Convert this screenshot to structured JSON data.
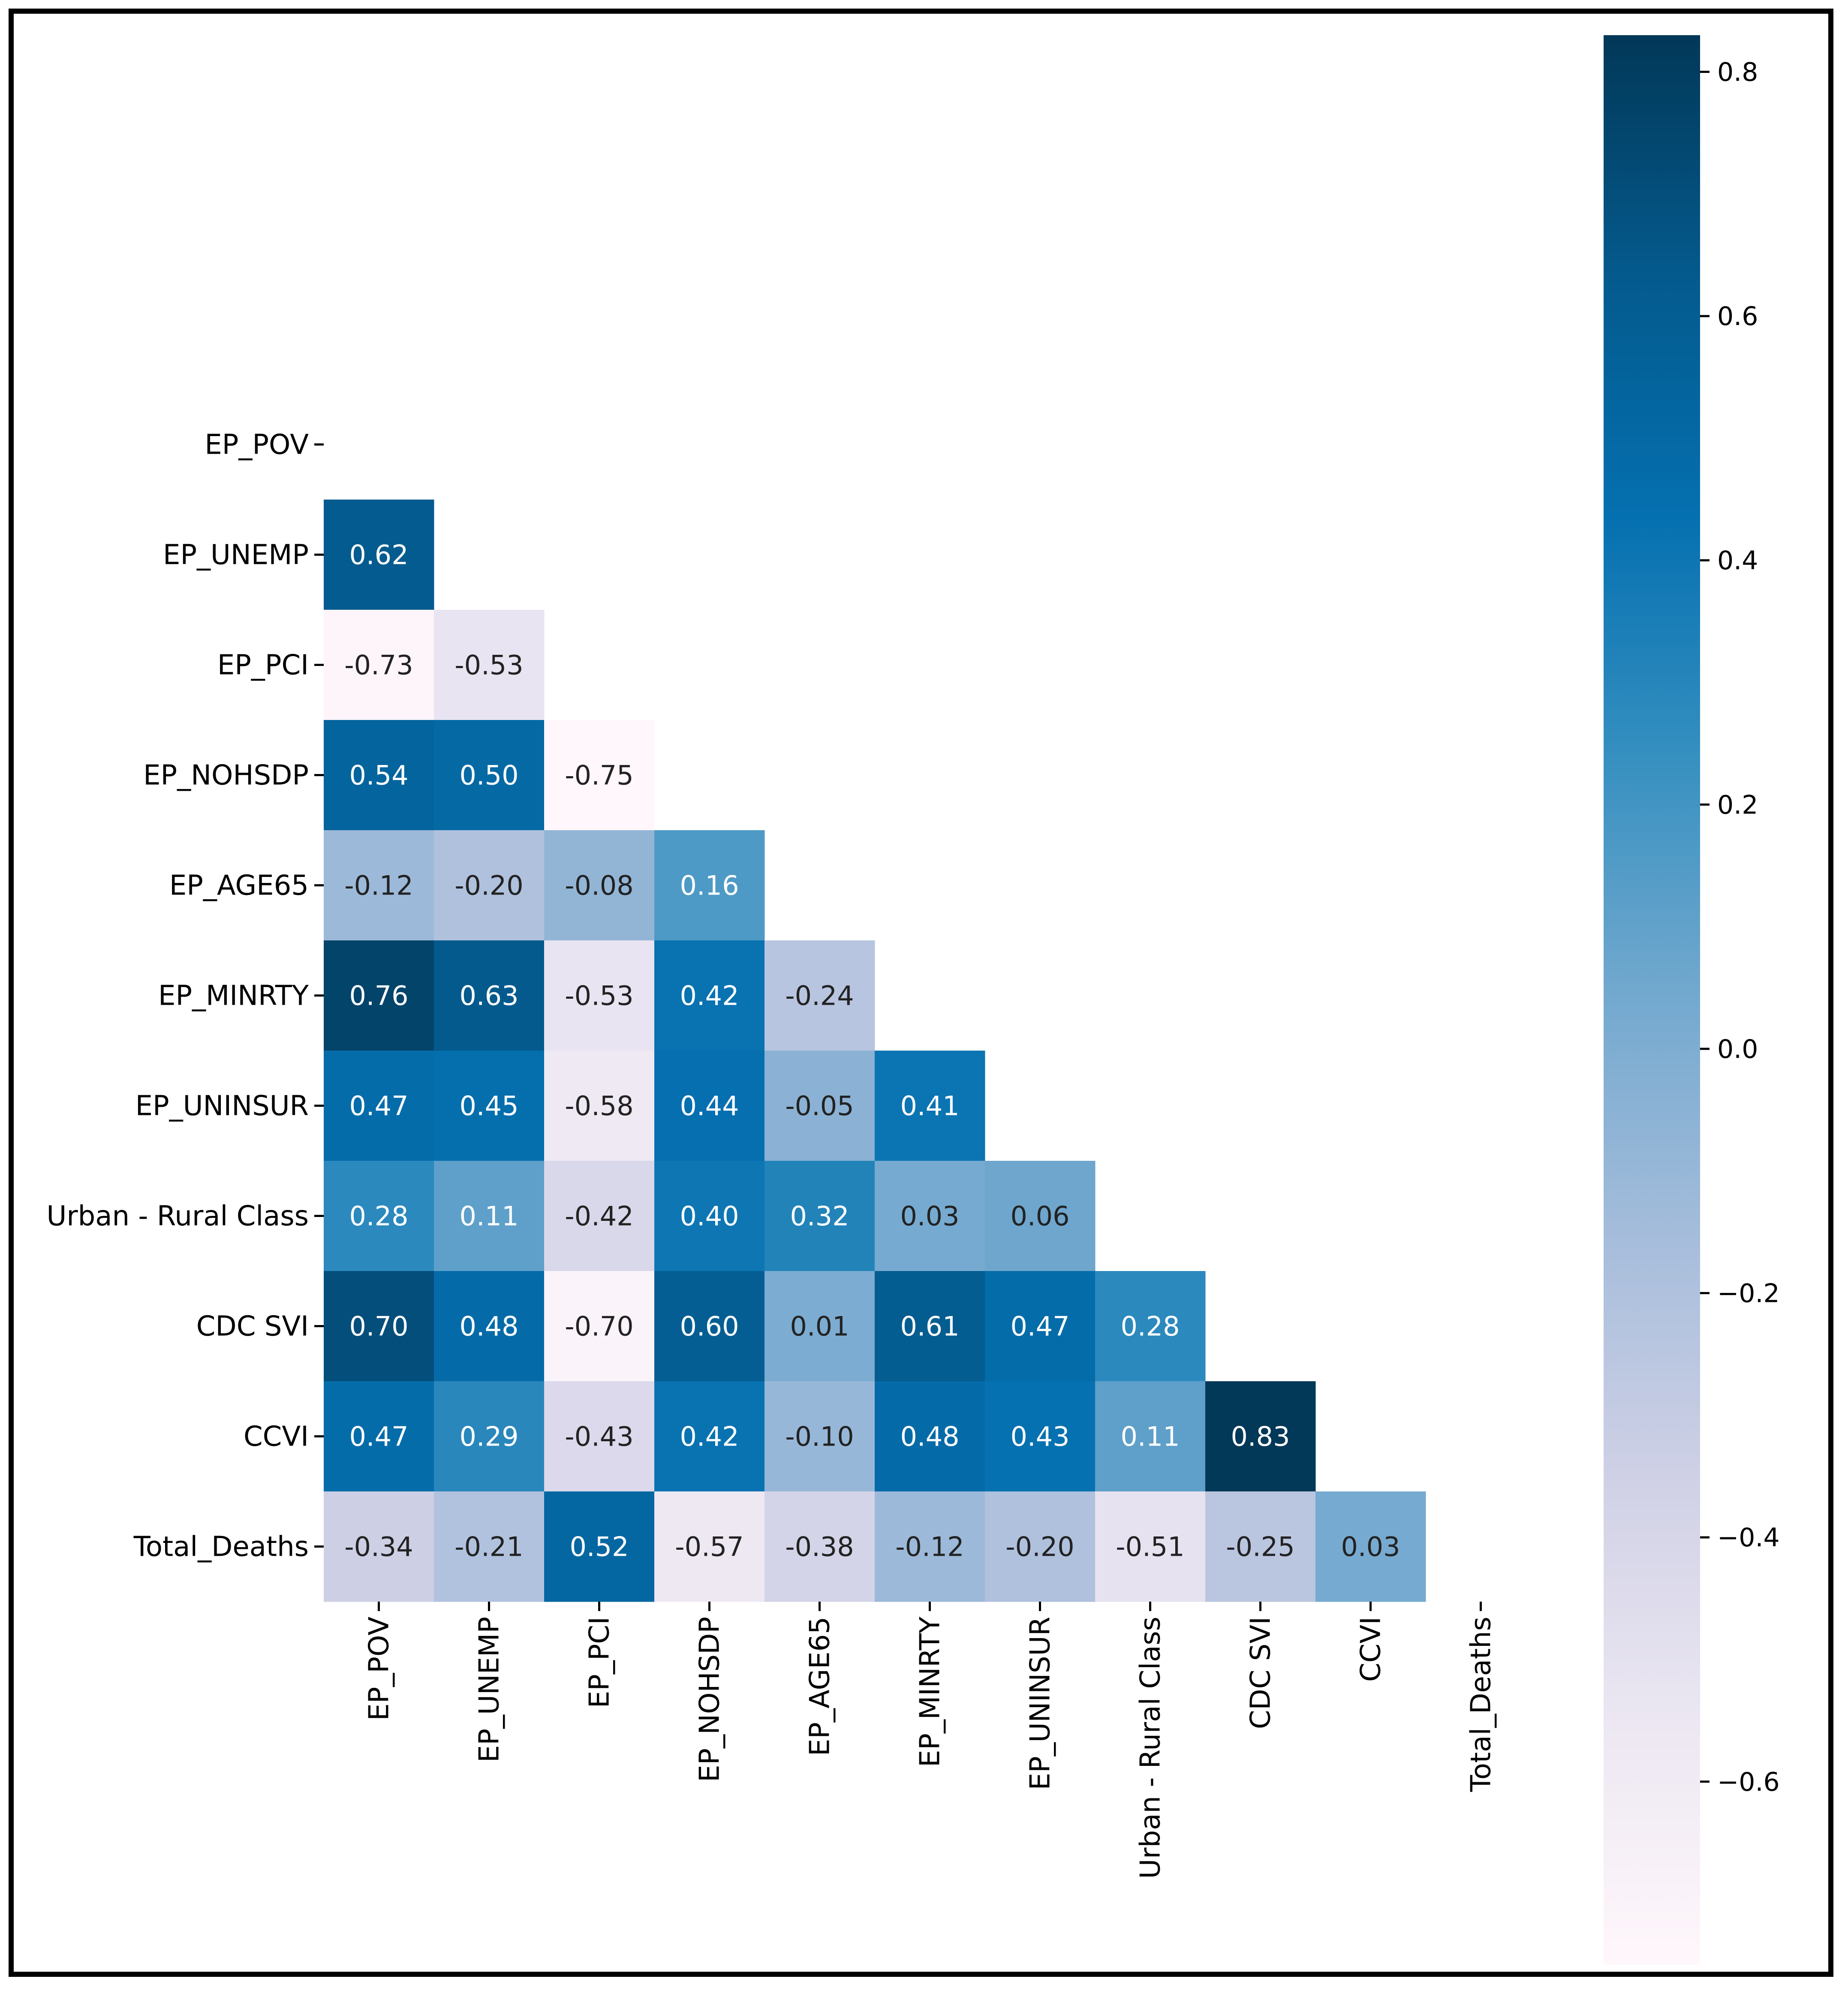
{
  "chart_data": {
    "type": "heatmap",
    "title": "",
    "labels": [
      "EP_POV",
      "EP_UNEMP",
      "EP_PCI",
      "EP_NOHSDP",
      "EP_AGE65",
      "EP_MINRTY",
      "EP_UNINSUR",
      "Urban - Rural Class",
      "CDC SVI",
      "CCVI",
      "Total_Deaths"
    ],
    "matrix": [
      [
        null,
        null,
        null,
        null,
        null,
        null,
        null,
        null,
        null,
        null,
        null
      ],
      [
        0.62,
        null,
        null,
        null,
        null,
        null,
        null,
        null,
        null,
        null,
        null
      ],
      [
        -0.73,
        -0.53,
        null,
        null,
        null,
        null,
        null,
        null,
        null,
        null,
        null
      ],
      [
        0.54,
        0.5,
        -0.75,
        null,
        null,
        null,
        null,
        null,
        null,
        null,
        null
      ],
      [
        -0.12,
        -0.2,
        -0.08,
        0.16,
        null,
        null,
        null,
        null,
        null,
        null,
        null
      ],
      [
        0.76,
        0.63,
        -0.53,
        0.42,
        -0.24,
        null,
        null,
        null,
        null,
        null,
        null
      ],
      [
        0.47,
        0.45,
        -0.58,
        0.44,
        -0.05,
        0.41,
        null,
        null,
        null,
        null,
        null
      ],
      [
        0.28,
        0.11,
        -0.42,
        0.4,
        0.32,
        0.03,
        0.06,
        null,
        null,
        null,
        null
      ],
      [
        0.7,
        0.48,
        -0.7,
        0.6,
        0.01,
        0.61,
        0.47,
        0.28,
        null,
        null,
        null
      ],
      [
        0.47,
        0.29,
        -0.43,
        0.42,
        -0.1,
        0.48,
        0.43,
        0.11,
        0.83,
        null,
        null
      ],
      [
        -0.34,
        -0.21,
        0.52,
        -0.57,
        -0.38,
        -0.12,
        -0.2,
        -0.51,
        -0.25,
        0.03,
        null
      ]
    ],
    "cell_labels": [
      [
        null,
        null,
        null,
        null,
        null,
        null,
        null,
        null,
        null,
        null,
        null
      ],
      [
        "0.62",
        null,
        null,
        null,
        null,
        null,
        null,
        null,
        null,
        null,
        null
      ],
      [
        "-0.73",
        "-0.53",
        null,
        null,
        null,
        null,
        null,
        null,
        null,
        null,
        null
      ],
      [
        "0.54",
        "0.50",
        "-0.75",
        null,
        null,
        null,
        null,
        null,
        null,
        null,
        null
      ],
      [
        "-0.12",
        "-0.20",
        "-0.08",
        "0.16",
        null,
        null,
        null,
        null,
        null,
        null,
        null
      ],
      [
        "0.76",
        "0.63",
        "-0.53",
        "0.42",
        "-0.24",
        null,
        null,
        null,
        null,
        null,
        null
      ],
      [
        "0.47",
        "0.45",
        "-0.58",
        "0.44",
        "-0.05",
        "0.41",
        null,
        null,
        null,
        null,
        null
      ],
      [
        "0.28",
        "0.11",
        "-0.42",
        "0.40",
        "0.32",
        "0.03",
        "0.06",
        null,
        null,
        null,
        null
      ],
      [
        "0.70",
        "0.48",
        "-0.70",
        "0.60",
        "0.01",
        "0.61",
        "0.47",
        "0.28",
        null,
        null,
        null
      ],
      [
        "0.47",
        "0.29",
        "-0.43",
        "0.42",
        "-0.10",
        "0.48",
        "0.43",
        "0.11",
        "0.83",
        null,
        null
      ],
      [
        "-0.34",
        "-0.21",
        "0.52",
        "-0.57",
        "-0.38",
        "-0.12",
        "-0.20",
        "-0.51",
        "-0.25",
        "0.03",
        null
      ]
    ],
    "colorbar": {
      "range": [
        -0.75,
        0.83
      ],
      "ticks": [
        0.8,
        0.6,
        0.4,
        0.2,
        0.0,
        -0.2,
        -0.4,
        -0.6
      ],
      "tick_labels": [
        "0.8",
        "0.6",
        "0.4",
        "0.2",
        "0.0",
        "−0.2",
        "−0.4",
        "−0.6"
      ],
      "colormap_stops": [
        "#fff7fb",
        "#ece7f2",
        "#d0d1e6",
        "#a6bddb",
        "#74a9cf",
        "#3690c0",
        "#0570b0",
        "#045a8d",
        "#023858"
      ]
    },
    "xlabel": "",
    "ylabel": ""
  }
}
